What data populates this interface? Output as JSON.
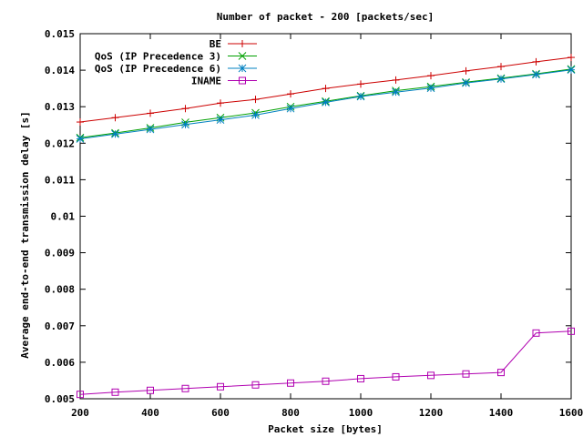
{
  "chart_data": {
    "type": "line",
    "title": "Number of packet - 200 [packets/sec]",
    "xlabel": "Packet size [bytes]",
    "ylabel": "Average end-to-end transmission delay [s]",
    "xlim": [
      200,
      1600
    ],
    "ylim": [
      0.005,
      0.015
    ],
    "xticks": [
      200,
      400,
      600,
      800,
      1000,
      1200,
      1400,
      1600
    ],
    "yticks": [
      0.005,
      0.006,
      0.007,
      0.008,
      0.009,
      0.01,
      0.011,
      0.012,
      0.013,
      0.014,
      0.015
    ],
    "xtick_labels": [
      "200",
      "400",
      "600",
      "800",
      "1000",
      "1200",
      "1400",
      "1600"
    ],
    "ytick_labels": [
      "0.005",
      "0.006",
      "0.007",
      "0.008",
      "0.009",
      "0.01",
      "0.011",
      "0.012",
      "0.013",
      "0.014",
      "0.015"
    ],
    "grid": false,
    "legend_position": "top-left",
    "x": [
      200,
      300,
      400,
      500,
      600,
      700,
      800,
      900,
      1000,
      1100,
      1200,
      1300,
      1400,
      1500,
      1600
    ],
    "series": [
      {
        "name": "BE",
        "color": "#cc0000",
        "marker": "plus",
        "values": [
          0.01258,
          0.0127,
          0.01282,
          0.01295,
          0.0131,
          0.0132,
          0.01335,
          0.0135,
          0.01362,
          0.01373,
          0.01385,
          0.01398,
          0.0141,
          0.01423,
          0.01435
        ]
      },
      {
        "name": "QoS (IP Precedence 3)",
        "color": "#00a000",
        "marker": "cross",
        "values": [
          0.01215,
          0.01228,
          0.01242,
          0.01257,
          0.0127,
          0.01283,
          0.013,
          0.01315,
          0.0133,
          0.01344,
          0.01355,
          0.01367,
          0.01378,
          0.0139,
          0.01403
        ]
      },
      {
        "name": "QoS (IP Precedence 6)",
        "color": "#0080c0",
        "marker": "star",
        "values": [
          0.01212,
          0.01225,
          0.01238,
          0.01251,
          0.01264,
          0.01277,
          0.01295,
          0.01312,
          0.01328,
          0.0134,
          0.01351,
          0.01365,
          0.01376,
          0.01388,
          0.01401
        ]
      },
      {
        "name": "INAME",
        "color": "#b000b0",
        "marker": "square",
        "values": [
          0.00512,
          0.00518,
          0.00523,
          0.00528,
          0.00533,
          0.00538,
          0.00543,
          0.00548,
          0.00555,
          0.0056,
          0.00564,
          0.00568,
          0.00572,
          0.0068,
          0.00685
        ]
      }
    ]
  }
}
